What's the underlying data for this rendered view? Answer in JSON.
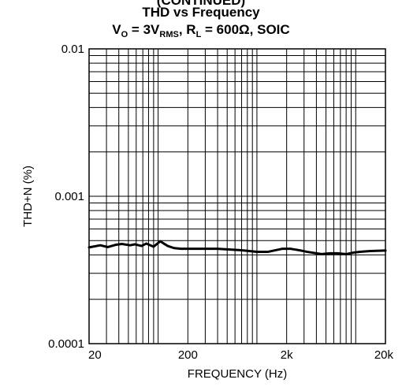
{
  "chart_data": {
    "type": "line",
    "title_partial": "(CONTINUED)",
    "title": "THD vs Frequency",
    "subtitle": {
      "vo_label": "V",
      "vo_sub": "O",
      "vo_eq": " = 3V",
      "vo_unit_sub": "RMS",
      "rl_sep": ", R",
      "rl_sub": "L",
      "rl_rest": " = 600Ω, SOIC"
    },
    "xlabel": "FREQUENCY (Hz)",
    "ylabel": "THD+N (%)",
    "x_scale": "log",
    "y_scale": "log",
    "xlim": [
      20,
      20000
    ],
    "ylim": [
      0.0001,
      0.01
    ],
    "grid": true,
    "x_ticks": [
      {
        "value": 20,
        "label": "20"
      },
      {
        "value": 200,
        "label": "200"
      },
      {
        "value": 2000,
        "label": "2k"
      },
      {
        "value": 20000,
        "label": "20k"
      }
    ],
    "y_ticks": [
      {
        "value": 0.01,
        "label": "0.01"
      },
      {
        "value": 0.001,
        "label": "0.001"
      },
      {
        "value": 0.0001,
        "label": "0.0001"
      }
    ],
    "series": [
      {
        "color": "#000000",
        "x": [
          20,
          26,
          31,
          37,
          43,
          52,
          58,
          68,
          76,
          90,
          105,
          125,
          145,
          170,
          230,
          400,
          700,
          1000,
          1300,
          1800,
          2200,
          2800,
          3200,
          4500,
          5500,
          6500,
          8000,
          9500,
          11000,
          14000,
          20000
        ],
        "y": [
          0.00045,
          0.000465,
          0.000452,
          0.000468,
          0.000475,
          0.000465,
          0.000472,
          0.00046,
          0.000478,
          0.000455,
          0.000495,
          0.00046,
          0.000445,
          0.00044,
          0.00044,
          0.00044,
          0.00043,
          0.00042,
          0.00042,
          0.00044,
          0.00044,
          0.000428,
          0.00042,
          0.000405,
          0.00041,
          0.00041,
          0.000405,
          0.000415,
          0.00042,
          0.000425,
          0.000428
        ]
      }
    ]
  }
}
